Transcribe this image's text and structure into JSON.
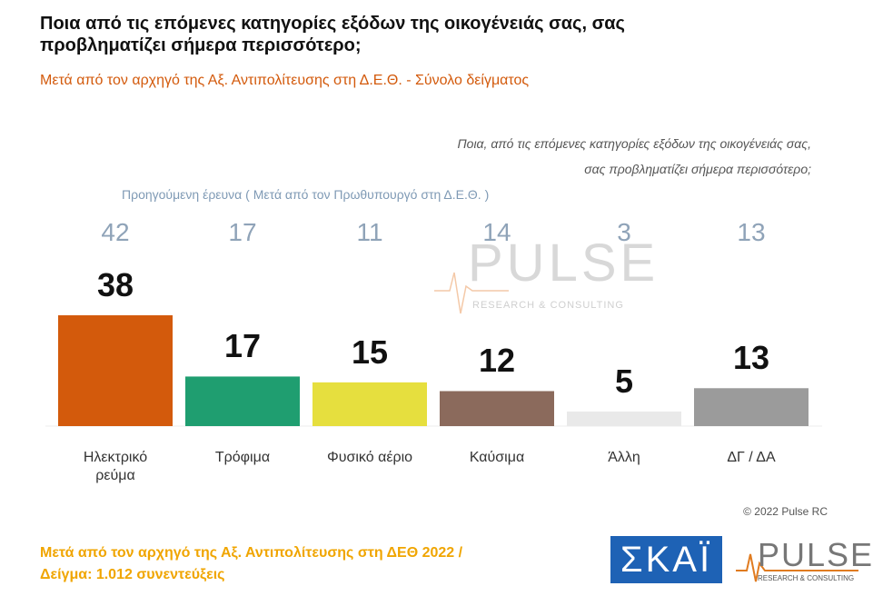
{
  "chart_data": {
    "type": "bar",
    "title": "Ποια από τις επόμενες κατηγορίες εξόδων της οικογένειάς σας, σας προβληματίζει σήμερα περισσότερο;",
    "subtitle": "Μετά από τον αρχηγό της Αξ. Αντιπολίτευσης στη Δ.Ε.Θ. - Σύνολο δείγματος",
    "annotation": [
      "Ποια, από τις επόμενες κατηγορίες εξόδων της οικογένειάς σας,",
      "σας προβληματίζει σήμερα περισσότερο;"
    ],
    "categories": [
      "Ηλεκτρικό ρεύμα",
      "Τρόφιμα",
      "Φυσικό αέριο",
      "Καύσιμα",
      "Άλλη",
      "ΔΓ / ΔΑ"
    ],
    "series": [
      {
        "name": "Προηγούμενη έρευνα ( Μετά από τον Πρωθυπουργό στη Δ.Ε.Θ. )",
        "color": "#8fa3b8",
        "values": [
          42,
          17,
          11,
          14,
          3,
          13
        ]
      },
      {
        "colors": [
          "#d35a0c",
          "#1f9e70",
          "#e6df3e",
          "#8b6a5c",
          "#e9e9e9",
          "#9b9b9b"
        ],
        "values": [
          38,
          17,
          15,
          12,
          5,
          13
        ]
      }
    ],
    "ylim": [
      0,
      100
    ],
    "watermark": [
      "PULSE",
      "RESEARCH & CONSULTING"
    ],
    "copyright": "© 2022 Pulse RC",
    "footer": [
      "Μετά από τον αρχηγό της Αξ. Αντιπολίτευσης στη ΔΕΘ 2022 /",
      "Δείγμα:  1.012 συνεντεύξεις"
    ],
    "logos": [
      "ΣΚΑΪ",
      "PULSE",
      "RESEARCH & CONSULTING"
    ]
  }
}
